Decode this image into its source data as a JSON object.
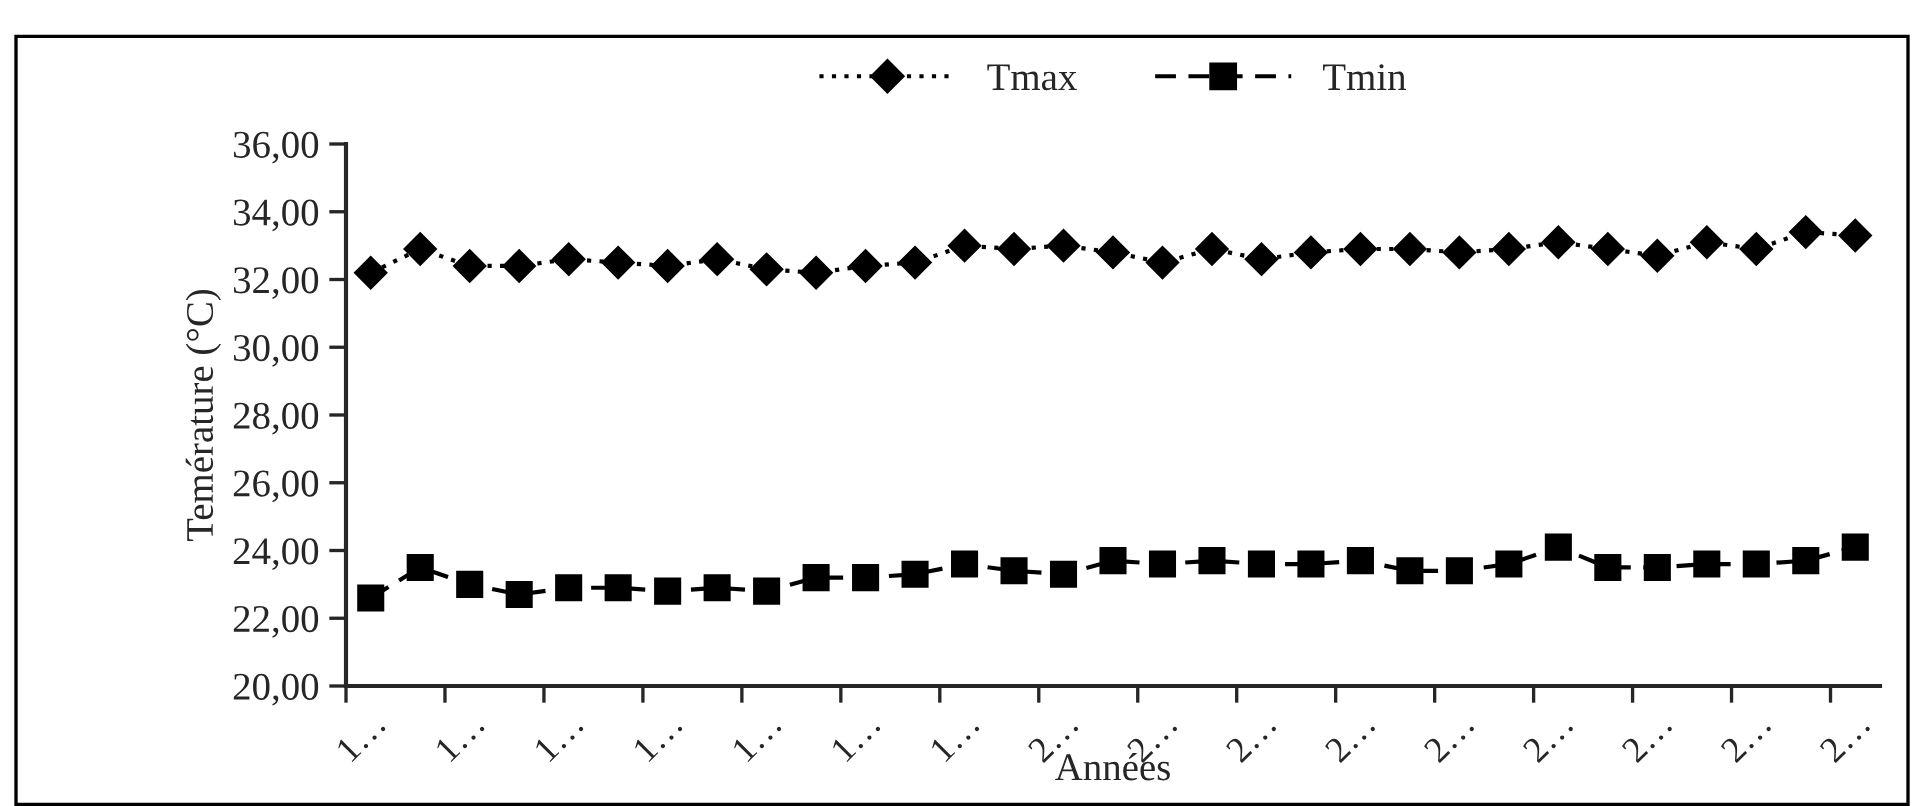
{
  "chart_data": {
    "type": "line",
    "xlabel": "Années",
    "ylabel": "Temérature (°C)",
    "categories": [
      "1…",
      null,
      "1…",
      null,
      "1…",
      null,
      "1…",
      null,
      "1…",
      null,
      "1…",
      null,
      "1…",
      null,
      "2…",
      null,
      "2…",
      null,
      "2…",
      null,
      "2…",
      null,
      "2…",
      null,
      "2…",
      null,
      "2…",
      null,
      "2…",
      null,
      "2…"
    ],
    "series": [
      {
        "name": "Tmax",
        "color": "#000000",
        "marker": "diamond",
        "line_style": "dotted",
        "values": [
          32.2,
          32.9,
          32.4,
          32.4,
          32.6,
          32.5,
          32.4,
          32.6,
          32.3,
          32.2,
          32.4,
          32.5,
          33.0,
          32.9,
          33.0,
          32.8,
          32.5,
          32.9,
          32.6,
          32.8,
          32.9,
          32.9,
          32.8,
          32.9,
          33.1,
          32.9,
          32.7,
          33.1,
          32.9,
          33.4,
          33.3
        ]
      },
      {
        "name": "Tmin",
        "color": "#000000",
        "marker": "square",
        "line_style": "dashed",
        "values": [
          22.6,
          23.5,
          23.0,
          22.7,
          22.9,
          22.9,
          22.8,
          22.9,
          22.8,
          23.2,
          23.2,
          23.3,
          23.6,
          23.4,
          23.3,
          23.7,
          23.6,
          23.7,
          23.6,
          23.6,
          23.7,
          23.4,
          23.4,
          23.6,
          24.1,
          23.5,
          23.5,
          23.6,
          23.6,
          23.7,
          24.1
        ]
      }
    ],
    "ylim": [
      20,
      36
    ],
    "yticks": [
      {
        "value": 20,
        "label": "20,00"
      },
      {
        "value": 22,
        "label": "22,00"
      },
      {
        "value": 24,
        "label": "24,00"
      },
      {
        "value": 26,
        "label": "26,00"
      },
      {
        "value": 28,
        "label": "28,00"
      },
      {
        "value": 30,
        "label": "30,00"
      },
      {
        "value": 32,
        "label": "32,00"
      },
      {
        "value": 34,
        "label": "34,00"
      },
      {
        "value": 36,
        "label": "36,00"
      }
    ],
    "grid": false,
    "legend": "top"
  }
}
